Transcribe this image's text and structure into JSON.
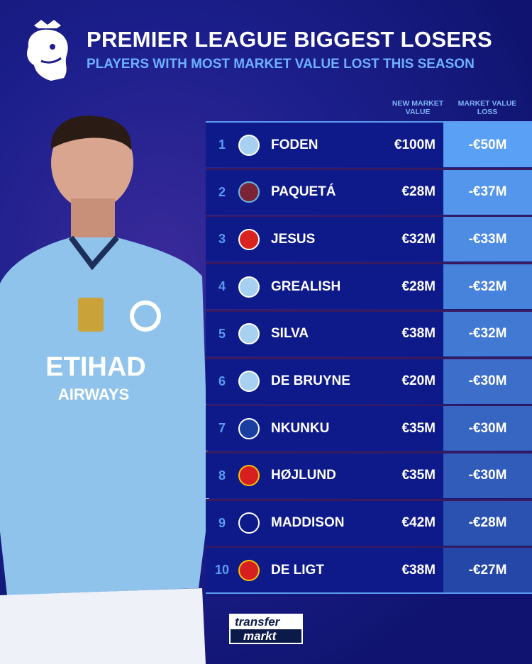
{
  "header": {
    "title": "PREMIER LEAGUE BIGGEST LOSERS",
    "subtitle": "PLAYERS WITH MOST MARKET VALUE LOST THIS SEASON"
  },
  "columns": {
    "new_value": "NEW MARKET VALUE",
    "loss": "MARKET VALUE LOSS"
  },
  "rows": [
    {
      "rank": "1",
      "club": "Manchester City",
      "name": "FODEN",
      "value": "€100M",
      "loss": "-€50M"
    },
    {
      "rank": "2",
      "club": "West Ham",
      "name": "PAQUETÁ",
      "value": "€28M",
      "loss": "-€37M"
    },
    {
      "rank": "3",
      "club": "Arsenal",
      "name": "JESUS",
      "value": "€32M",
      "loss": "-€33M"
    },
    {
      "rank": "4",
      "club": "Manchester City",
      "name": "GREALISH",
      "value": "€28M",
      "loss": "-€32M"
    },
    {
      "rank": "5",
      "club": "Manchester City",
      "name": "SILVA",
      "value": "€38M",
      "loss": "-€32M"
    },
    {
      "rank": "6",
      "club": "Manchester City",
      "name": "DE BRUYNE",
      "value": "€20M",
      "loss": "-€30M"
    },
    {
      "rank": "7",
      "club": "Chelsea",
      "name": "NKUNKU",
      "value": "€35M",
      "loss": "-€30M"
    },
    {
      "rank": "8",
      "club": "Manchester United",
      "name": "HØJLUND",
      "value": "€35M",
      "loss": "-€30M"
    },
    {
      "rank": "9",
      "club": "Tottenham",
      "name": "MADDISON",
      "value": "€42M",
      "loss": "-€28M"
    },
    {
      "rank": "10",
      "club": "Manchester United",
      "name": "DE LIGT",
      "value": "€38M",
      "loss": "-€27M"
    }
  ],
  "shirt": {
    "sponsor": "ETIHAD",
    "sponsor2": "AIRWAYS"
  },
  "brand": {
    "line1": "transfer",
    "line2": "markt"
  },
  "colors": {
    "background": "#12157a",
    "accent": "#5a9cf0",
    "row": "#0e1a8a",
    "loss_max": "#5aa0f5",
    "loss_min": "#2548a8"
  }
}
